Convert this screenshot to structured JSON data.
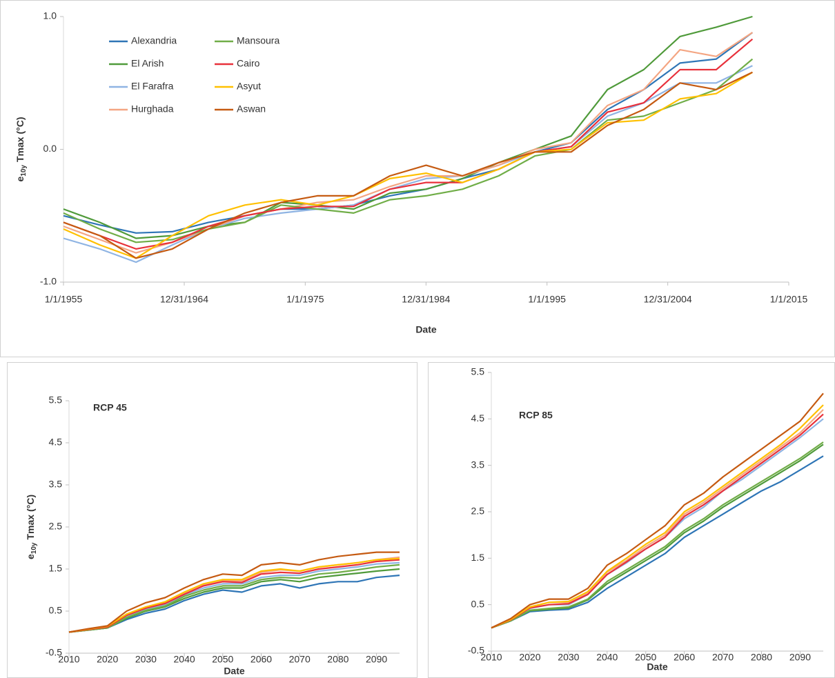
{
  "chart_data": [
    {
      "type": "line",
      "ylabel": {
        "base": "e",
        "sub": "10y",
        "rest": "Tmax (°C)"
      },
      "xlabel": "Date",
      "legend": "upper left",
      "xlim": [
        1955,
        2015
      ],
      "xticks": [
        {
          "value": 1955,
          "label": "1/1/1955"
        },
        {
          "value": 1964.99,
          "label": "12/31/1964"
        },
        {
          "value": 1975,
          "label": "1/1/1975"
        },
        {
          "value": 1984.99,
          "label": "12/31/1984"
        },
        {
          "value": 1995,
          "label": "1/1/1995"
        },
        {
          "value": 2004.99,
          "label": "12/31/2004"
        },
        {
          "value": 2015,
          "label": "1/1/2015"
        }
      ],
      "ylim": [
        -1,
        1
      ],
      "yticks": [
        {
          "value": -1,
          "label": "-1.0"
        },
        {
          "value": 0,
          "label": "0.0"
        },
        {
          "value": 1,
          "label": "1.0"
        }
      ],
      "x": [
        1955,
        1958,
        1961,
        1964,
        1967,
        1970,
        1973,
        1976,
        1979,
        1982,
        1985,
        1988,
        1991,
        1994,
        1997,
        2000,
        2003,
        2006,
        2009,
        2012
      ],
      "series": [
        {
          "name": "Alexandria",
          "color": "#2e75b6",
          "values": [
            -0.5,
            -0.57,
            -0.63,
            -0.62,
            -0.55,
            -0.5,
            -0.45,
            -0.45,
            -0.42,
            -0.35,
            -0.3,
            -0.22,
            -0.15,
            -0.02,
            0.05,
            0.3,
            0.45,
            0.65,
            0.68,
            0.88
          ]
        },
        {
          "name": "El Arish",
          "color": "#4f9a3a",
          "values": [
            -0.45,
            -0.55,
            -0.67,
            -0.65,
            -0.58,
            -0.55,
            -0.4,
            -0.42,
            -0.45,
            -0.33,
            -0.3,
            -0.22,
            -0.1,
            0,
            0.1,
            0.45,
            0.6,
            0.85,
            0.92,
            1.0
          ]
        },
        {
          "name": "El Farafra",
          "color": "#8fb4e3",
          "values": [
            -0.67,
            -0.75,
            -0.85,
            -0.72,
            -0.6,
            -0.52,
            -0.48,
            -0.45,
            -0.42,
            -0.3,
            -0.22,
            -0.2,
            -0.12,
            -0.02,
            0.02,
            0.25,
            0.35,
            0.5,
            0.5,
            0.63
          ]
        },
        {
          "name": "Hurghada",
          "color": "#f4a582",
          "values": [
            -0.58,
            -0.68,
            -0.78,
            -0.7,
            -0.6,
            -0.5,
            -0.45,
            -0.4,
            -0.38,
            -0.28,
            -0.2,
            -0.2,
            -0.12,
            0,
            0.05,
            0.33,
            0.45,
            0.75,
            0.7,
            0.88
          ]
        },
        {
          "name": "Mansoura",
          "color": "#70ad47",
          "values": [
            -0.48,
            -0.6,
            -0.7,
            -0.68,
            -0.6,
            -0.55,
            -0.42,
            -0.45,
            -0.48,
            -0.38,
            -0.35,
            -0.3,
            -0.2,
            -0.05,
            0,
            0.22,
            0.25,
            0.35,
            0.45,
            0.68
          ]
        },
        {
          "name": "Cairo",
          "color": "#e8303a",
          "values": [
            -0.55,
            -0.65,
            -0.75,
            -0.7,
            -0.58,
            -0.5,
            -0.45,
            -0.43,
            -0.43,
            -0.3,
            -0.25,
            -0.25,
            -0.15,
            -0.02,
            0.02,
            0.28,
            0.35,
            0.6,
            0.6,
            0.83
          ]
        },
        {
          "name": "Asyut",
          "color": "#ffc000",
          "values": [
            -0.6,
            -0.72,
            -0.82,
            -0.65,
            -0.5,
            -0.42,
            -0.38,
            -0.42,
            -0.35,
            -0.22,
            -0.18,
            -0.25,
            -0.15,
            -0.02,
            0,
            0.2,
            0.22,
            0.38,
            0.42,
            0.58
          ]
        },
        {
          "name": "Aswan",
          "color": "#c55a11",
          "values": [
            -0.55,
            -0.65,
            -0.82,
            -0.75,
            -0.6,
            -0.48,
            -0.4,
            -0.35,
            -0.35,
            -0.2,
            -0.12,
            -0.2,
            -0.1,
            -0.02,
            -0.02,
            0.18,
            0.3,
            0.5,
            0.45,
            0.58
          ]
        }
      ]
    },
    {
      "type": "line",
      "title": "RCP 45",
      "ylabel": {
        "base": "e",
        "sub": "10y",
        "rest": "Tmax (°C)"
      },
      "xlabel": "Date",
      "xlim": [
        2010,
        2096
      ],
      "xticks": [
        2010,
        2020,
        2030,
        2040,
        2050,
        2060,
        2070,
        2080,
        2090
      ],
      "ylim": [
        -0.5,
        5.5
      ],
      "yticks": [
        -0.5,
        0.5,
        1.5,
        2.5,
        3.5,
        4.5,
        5.5
      ],
      "x": [
        2010,
        2015,
        2020,
        2025,
        2030,
        2035,
        2040,
        2045,
        2050,
        2055,
        2060,
        2065,
        2070,
        2075,
        2080,
        2085,
        2090,
        2096
      ],
      "series": [
        {
          "color": "#2e75b6",
          "values": [
            0,
            0.05,
            0.1,
            0.3,
            0.45,
            0.55,
            0.75,
            0.9,
            1.0,
            0.95,
            1.1,
            1.15,
            1.05,
            1.15,
            1.2,
            1.2,
            1.3,
            1.35
          ]
        },
        {
          "color": "#4f9a3a",
          "values": [
            0,
            0.05,
            0.1,
            0.33,
            0.5,
            0.6,
            0.8,
            0.95,
            1.05,
            1.05,
            1.2,
            1.25,
            1.2,
            1.3,
            1.35,
            1.4,
            1.45,
            1.5
          ]
        },
        {
          "color": "#8fb4e3",
          "values": [
            0,
            0.06,
            0.12,
            0.38,
            0.55,
            0.65,
            0.88,
            1.05,
            1.15,
            1.15,
            1.3,
            1.35,
            1.35,
            1.45,
            1.5,
            1.55,
            1.62,
            1.65
          ]
        },
        {
          "color": "#f4a582",
          "values": [
            0,
            0.06,
            0.12,
            0.4,
            0.58,
            0.7,
            0.92,
            1.12,
            1.22,
            1.22,
            1.42,
            1.48,
            1.45,
            1.55,
            1.6,
            1.65,
            1.72,
            1.78
          ]
        },
        {
          "color": "#70ad47",
          "values": [
            0,
            0.05,
            0.1,
            0.35,
            0.52,
            0.62,
            0.85,
            1.0,
            1.1,
            1.1,
            1.25,
            1.3,
            1.28,
            1.38,
            1.42,
            1.48,
            1.55,
            1.6
          ]
        },
        {
          "color": "#e8303a",
          "values": [
            0,
            0.06,
            0.12,
            0.4,
            0.57,
            0.68,
            0.9,
            1.1,
            1.2,
            1.18,
            1.38,
            1.42,
            1.4,
            1.5,
            1.55,
            1.6,
            1.68,
            1.72
          ]
        },
        {
          "color": "#ffc000",
          "values": [
            0,
            0.07,
            0.14,
            0.43,
            0.6,
            0.72,
            0.95,
            1.15,
            1.25,
            1.25,
            1.45,
            1.5,
            1.45,
            1.55,
            1.6,
            1.65,
            1.72,
            1.75
          ]
        },
        {
          "color": "#c55a11",
          "values": [
            0,
            0.08,
            0.15,
            0.5,
            0.7,
            0.82,
            1.05,
            1.25,
            1.38,
            1.35,
            1.6,
            1.65,
            1.6,
            1.72,
            1.8,
            1.85,
            1.9,
            1.9
          ]
        }
      ]
    },
    {
      "type": "line",
      "title": "RCP 85",
      "xlabel": "Date",
      "xlim": [
        2010,
        2096
      ],
      "xticks": [
        2010,
        2020,
        2030,
        2040,
        2050,
        2060,
        2070,
        2080,
        2090
      ],
      "ylim": [
        -0.5,
        5.5
      ],
      "yticks": [
        -0.5,
        0.5,
        1.5,
        2.5,
        3.5,
        4.5,
        5.5
      ],
      "x": [
        2010,
        2015,
        2020,
        2025,
        2030,
        2035,
        2040,
        2045,
        2050,
        2055,
        2060,
        2065,
        2070,
        2075,
        2080,
        2085,
        2090,
        2096
      ],
      "series": [
        {
          "color": "#2e75b6",
          "values": [
            0,
            0.15,
            0.35,
            0.38,
            0.4,
            0.55,
            0.85,
            1.1,
            1.35,
            1.6,
            1.95,
            2.2,
            2.45,
            2.7,
            2.95,
            3.15,
            3.4,
            3.7
          ]
        },
        {
          "color": "#4f9a3a",
          "values": [
            0,
            0.15,
            0.37,
            0.4,
            0.43,
            0.6,
            0.95,
            1.2,
            1.45,
            1.7,
            2.05,
            2.3,
            2.6,
            2.85,
            3.1,
            3.35,
            3.6,
            3.95
          ]
        },
        {
          "color": "#8fb4e3",
          "values": [
            0,
            0.17,
            0.42,
            0.5,
            0.5,
            0.72,
            1.15,
            1.4,
            1.7,
            1.95,
            2.35,
            2.6,
            2.95,
            3.2,
            3.5,
            3.8,
            4.1,
            4.5
          ]
        },
        {
          "color": "#f4a582",
          "values": [
            0,
            0.18,
            0.45,
            0.55,
            0.55,
            0.75,
            1.2,
            1.45,
            1.75,
            2.0,
            2.45,
            2.7,
            3.0,
            3.3,
            3.6,
            3.9,
            4.2,
            4.7
          ]
        },
        {
          "color": "#70ad47",
          "values": [
            0,
            0.15,
            0.38,
            0.42,
            0.45,
            0.62,
            1.0,
            1.25,
            1.5,
            1.75,
            2.1,
            2.35,
            2.65,
            2.9,
            3.15,
            3.4,
            3.65,
            4.0
          ]
        },
        {
          "color": "#e8303a",
          "values": [
            0,
            0.17,
            0.43,
            0.5,
            0.52,
            0.72,
            1.15,
            1.42,
            1.7,
            1.95,
            2.4,
            2.65,
            2.95,
            3.25,
            3.55,
            3.85,
            4.15,
            4.6
          ]
        },
        {
          "color": "#ffc000",
          "values": [
            0,
            0.18,
            0.45,
            0.55,
            0.57,
            0.78,
            1.22,
            1.5,
            1.8,
            2.05,
            2.5,
            2.75,
            3.05,
            3.35,
            3.65,
            3.95,
            4.3,
            4.8
          ]
        },
        {
          "color": "#c55a11",
          "values": [
            0,
            0.2,
            0.5,
            0.62,
            0.62,
            0.85,
            1.35,
            1.6,
            1.9,
            2.2,
            2.65,
            2.9,
            3.25,
            3.55,
            3.85,
            4.15,
            4.45,
            5.05
          ]
        }
      ]
    }
  ]
}
